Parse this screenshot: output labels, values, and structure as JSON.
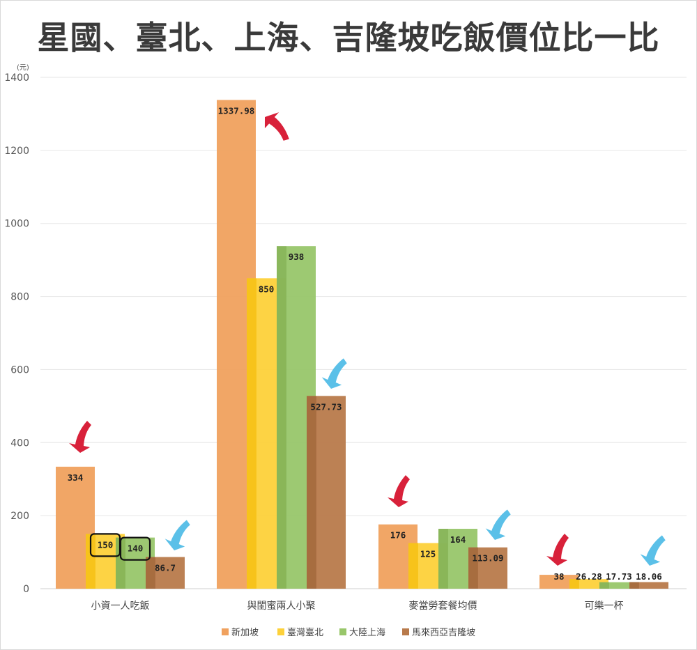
{
  "title": "星國、臺北、上海、吉隆坡吃飯價位比一比",
  "colors": {
    "series": [
      "#f0a15e",
      "#fdd13a",
      "#98c66a",
      "#b87a4b"
    ],
    "series_dark": [
      "#e8893a",
      "#f2b900",
      "#7aa84a",
      "#9a5f35"
    ],
    "red_arrow": "#d8213a",
    "blue_arrow": "#5bc0e8",
    "grid": "#e6e6e6"
  },
  "chart_data": {
    "type": "bar",
    "ylabel": "(元)",
    "ylim": [
      0,
      1400
    ],
    "yticks": [
      0,
      200,
      400,
      600,
      800,
      1000,
      1200,
      1400
    ],
    "grid": true,
    "legend_position": "bottom",
    "categories": [
      "小資一人吃飯",
      "與閨蜜兩人小聚",
      "麥當勞套餐均價",
      "可樂一杯"
    ],
    "series": [
      {
        "name": "新加坡",
        "values": [
          334,
          1337.98,
          176,
          38
        ],
        "labels": [
          "334",
          "1337.98",
          "176",
          "38"
        ]
      },
      {
        "name": "臺灣臺北",
        "values": [
          150,
          850,
          125,
          26.28
        ],
        "labels": [
          "150",
          "850",
          "125",
          "26.28"
        ]
      },
      {
        "name": "大陸上海",
        "values": [
          140,
          938,
          164,
          17.73
        ],
        "labels": [
          "140",
          "938",
          "164",
          "17.73"
        ]
      },
      {
        "name": "馬來西亞吉隆坡",
        "values": [
          86.7,
          527.73,
          113.09,
          18.06
        ],
        "labels": [
          "86.7",
          "527.73",
          "113.09",
          "18.06"
        ]
      }
    ],
    "annotations": {
      "red_arrows_point_to": "新加坡",
      "blue_arrows_point_to": "馬來西亞吉隆坡",
      "boxed_labels": [
        "150",
        "140"
      ]
    }
  }
}
